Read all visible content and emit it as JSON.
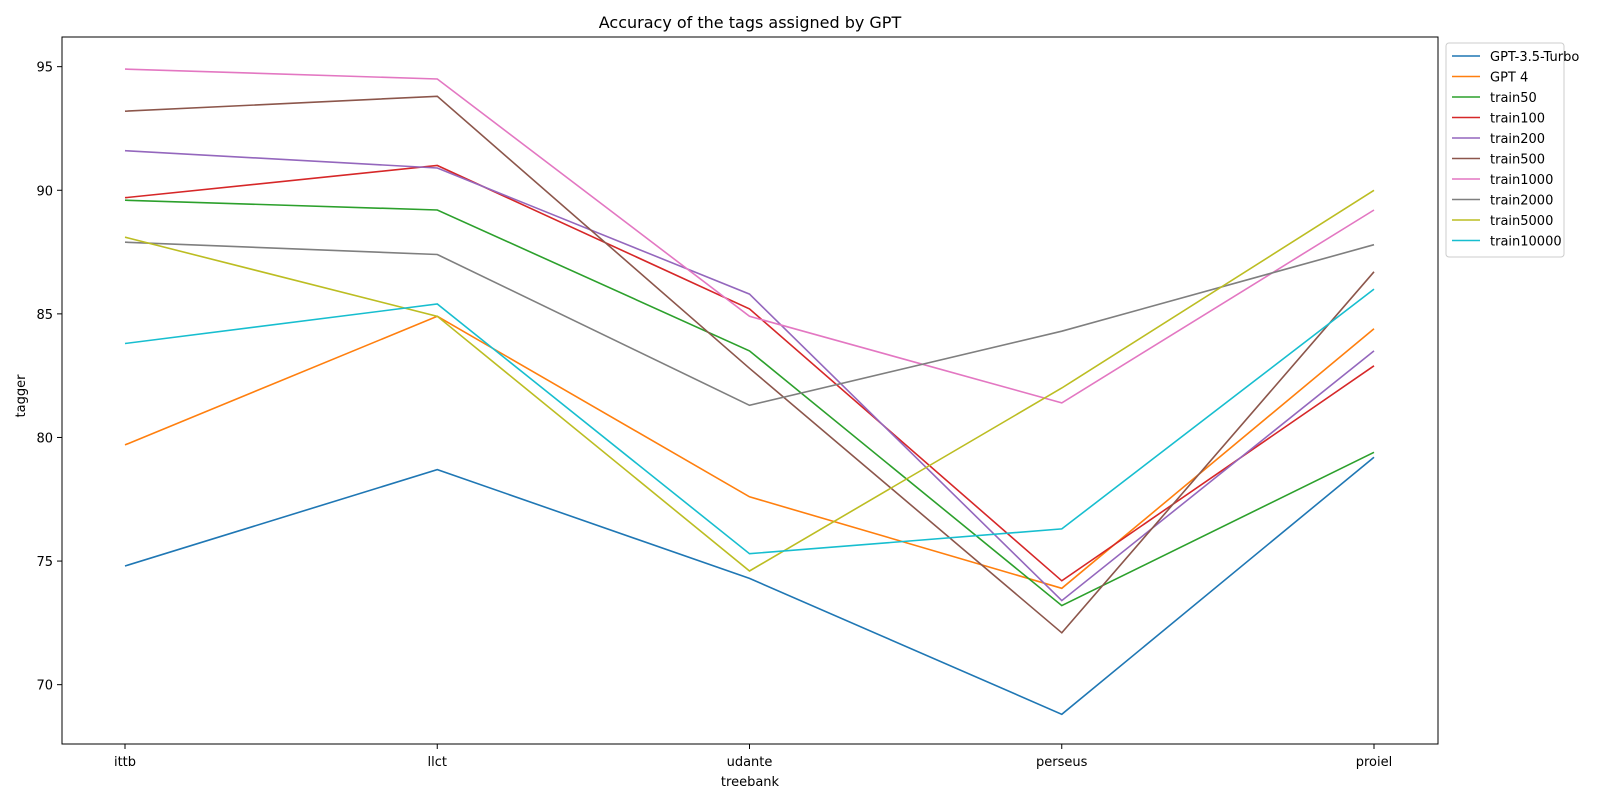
{
  "chart_data": {
    "type": "line",
    "title": "Accuracy of the tags assigned by GPT",
    "xlabel": "treebank",
    "ylabel": "tagger",
    "categories": [
      "ittb",
      "llct",
      "udante",
      "perseus",
      "proiel"
    ],
    "yticks": [
      70,
      75,
      80,
      85,
      90,
      95
    ],
    "ylim": [
      67.6,
      96.2
    ],
    "grid": false,
    "legend_position": "outside-top-right",
    "series": [
      {
        "name": "GPT-3.5-Turbo",
        "color": "#1f77b4",
        "values": [
          74.8,
          78.7,
          74.3,
          68.8,
          79.2
        ]
      },
      {
        "name": "GPT 4",
        "color": "#ff7f0e",
        "values": [
          79.7,
          84.9,
          77.6,
          73.9,
          84.4
        ]
      },
      {
        "name": "train50",
        "color": "#2ca02c",
        "values": [
          89.6,
          89.2,
          83.5,
          73.2,
          79.4
        ]
      },
      {
        "name": "train100",
        "color": "#d62728",
        "values": [
          89.7,
          91.0,
          85.2,
          74.2,
          82.9
        ]
      },
      {
        "name": "train200",
        "color": "#9467bd",
        "values": [
          91.6,
          90.9,
          85.8,
          73.4,
          83.5
        ]
      },
      {
        "name": "train500",
        "color": "#8c564b",
        "values": [
          93.2,
          93.8,
          82.8,
          72.1,
          86.7
        ]
      },
      {
        "name": "train1000",
        "color": "#e377c2",
        "values": [
          94.9,
          94.5,
          84.9,
          81.4,
          89.2
        ]
      },
      {
        "name": "train2000",
        "color": "#7f7f7f",
        "values": [
          87.9,
          87.4,
          81.3,
          84.3,
          87.8
        ]
      },
      {
        "name": "train5000",
        "color": "#bcbd22",
        "values": [
          88.1,
          84.9,
          74.6,
          82.0,
          90.0
        ]
      },
      {
        "name": "train10000",
        "color": "#17becf",
        "values": [
          83.8,
          85.4,
          75.3,
          76.3,
          86.0
        ]
      }
    ]
  }
}
